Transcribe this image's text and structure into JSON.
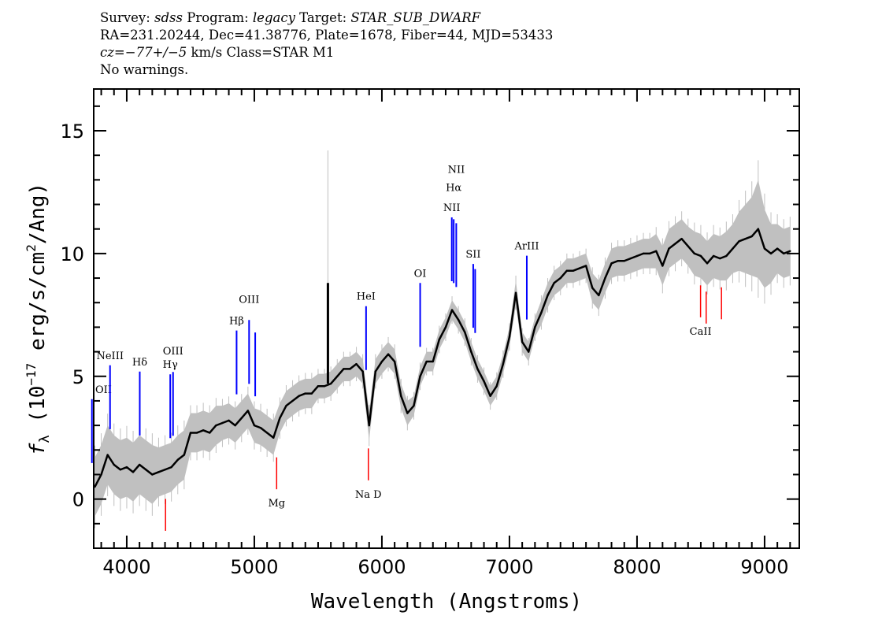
{
  "header": {
    "line1": {
      "survey_label": "Survey: ",
      "survey": "sdss",
      "program_label": " Program: ",
      "program": "legacy",
      "target_label": " Target: ",
      "target": "STAR_SUB_DWARF"
    },
    "line2": "RA=231.20244, Dec=41.38776, Plate=1678, Fiber=44, MJD=53433",
    "line3": {
      "cz": "cz=−77+/−5",
      "rest": " km/s Class=STAR M1"
    },
    "line4": "No warnings."
  },
  "chart_data": {
    "type": "line",
    "xlabel": "Wavelength (Angstroms)",
    "ylabel": {
      "f": "f",
      "sub": "λ",
      "pre": " (10",
      "exp": "−17",
      "mid": " erg/s/cm",
      "exp2": "2",
      "post": "/Ang)"
    },
    "xlim": [
      3741,
      9272
    ],
    "ylim": [
      -2,
      16.7
    ],
    "x_ticks": [
      4000,
      5000,
      6000,
      7000,
      8000,
      9000
    ],
    "x_tick_labels": [
      "4000",
      "5000",
      "6000",
      "7000",
      "8000",
      "9000"
    ],
    "y_ticks": [
      0,
      5,
      10,
      15
    ],
    "y_tick_labels": [
      "0",
      "5",
      "10",
      "15"
    ],
    "x_start": 3750,
    "x_step": 50,
    "flux": [
      0.5,
      1.0,
      1.8,
      1.4,
      1.2,
      1.3,
      1.1,
      1.4,
      1.2,
      1.0,
      1.1,
      1.2,
      1.3,
      1.6,
      1.8,
      2.7,
      2.7,
      2.8,
      2.7,
      3.0,
      3.1,
      3.2,
      3.0,
      3.3,
      3.6,
      3.0,
      2.9,
      2.7,
      2.5,
      3.3,
      3.8,
      4.0,
      4.2,
      4.3,
      4.3,
      4.6,
      4.6,
      4.7,
      5.0,
      5.3,
      5.3,
      5.5,
      5.2,
      3.0,
      5.2,
      5.6,
      5.9,
      5.6,
      4.2,
      3.5,
      3.8,
      5.0,
      5.6,
      5.6,
      6.5,
      7.0,
      7.7,
      7.3,
      6.8,
      6.0,
      5.3,
      4.8,
      4.2,
      4.6,
      5.5,
      6.6,
      8.4,
      6.4,
      6.0,
      7.0,
      7.6,
      8.3,
      8.8,
      9.0,
      9.3,
      9.3,
      9.4,
      9.5,
      8.6,
      8.3,
      9.0,
      9.6,
      9.7,
      9.7,
      9.8,
      9.9,
      10.0,
      10.0,
      10.1,
      9.5,
      10.2,
      10.4,
      10.6,
      10.3,
      10.0,
      9.9,
      9.6,
      9.9,
      9.8,
      9.9,
      10.2,
      10.5,
      10.6,
      10.7,
      11.0,
      10.2,
      10.0,
      10.2,
      10.0,
      10.1
    ],
    "error": [
      1.2,
      1.2,
      1.2,
      1.2,
      1.2,
      1.2,
      1.2,
      1.2,
      1.2,
      1.2,
      1.0,
      1.0,
      1.0,
      1.0,
      1.0,
      0.8,
      0.8,
      0.8,
      0.8,
      0.8,
      0.7,
      0.7,
      0.7,
      0.7,
      0.7,
      0.7,
      0.7,
      0.7,
      0.7,
      0.6,
      0.6,
      0.6,
      0.6,
      0.6,
      0.6,
      0.5,
      0.5,
      0.5,
      0.5,
      0.5,
      0.5,
      0.5,
      0.5,
      0.6,
      0.5,
      0.5,
      0.5,
      0.5,
      0.5,
      0.5,
      0.4,
      0.4,
      0.4,
      0.4,
      0.4,
      0.4,
      0.4,
      0.4,
      0.4,
      0.4,
      0.4,
      0.4,
      0.4,
      0.4,
      0.4,
      0.4,
      0.5,
      0.4,
      0.4,
      0.4,
      0.5,
      0.5,
      0.5,
      0.5,
      0.5,
      0.5,
      0.5,
      0.5,
      0.6,
      0.6,
      0.6,
      0.6,
      0.6,
      0.6,
      0.6,
      0.6,
      0.6,
      0.6,
      0.7,
      0.8,
      0.8,
      0.8,
      0.8,
      0.8,
      0.9,
      0.9,
      0.9,
      0.9,
      0.9,
      1.0,
      1.0,
      1.2,
      1.4,
      1.6,
      2.0,
      1.6,
      1.2,
      1.0,
      1.0,
      1.0
    ],
    "sky_line": {
      "x": 5577,
      "flux": 8.8
    },
    "series_colors": {
      "flux": "#000000",
      "error": "#c0c0c0"
    },
    "emission_lines": [
      {
        "label": "OII",
        "wavelength": 3727
      },
      {
        "label": "NeIII",
        "wavelength": 3869
      },
      {
        "label": "Hδ",
        "wavelength": 4102
      },
      {
        "label": "Hγ",
        "wavelength": 4341
      },
      {
        "label": "OIII",
        "wavelength": 4363
      },
      {
        "label": "Hβ",
        "wavelength": 4861
      },
      {
        "label": "OIII",
        "wavelength": 4959
      },
      {
        "label": "",
        "wavelength": 5007
      },
      {
        "label": "HeI",
        "wavelength": 5876
      },
      {
        "label": "OI",
        "wavelength": 6300
      },
      {
        "label": "NII",
        "wavelength": 6548
      },
      {
        "label": "Hα",
        "wavelength": 6563
      },
      {
        "label": "NII",
        "wavelength": 6583
      },
      {
        "label": "SII",
        "wavelength": 6716
      },
      {
        "label": "",
        "wavelength": 6731
      },
      {
        "label": "ArIII",
        "wavelength": 7136
      }
    ],
    "absorption_lines": [
      {
        "label": "",
        "wavelength": 4304
      },
      {
        "label": "Mg",
        "wavelength": 5175
      },
      {
        "label": "Na D",
        "wavelength": 5894
      },
      {
        "label": "CaII",
        "wavelength": 8498
      },
      {
        "label": "",
        "wavelength": 8542
      },
      {
        "label": "",
        "wavelength": 8662
      }
    ],
    "emission_color": "#0000ff",
    "absorption_color": "#ff0000",
    "grid": false
  }
}
